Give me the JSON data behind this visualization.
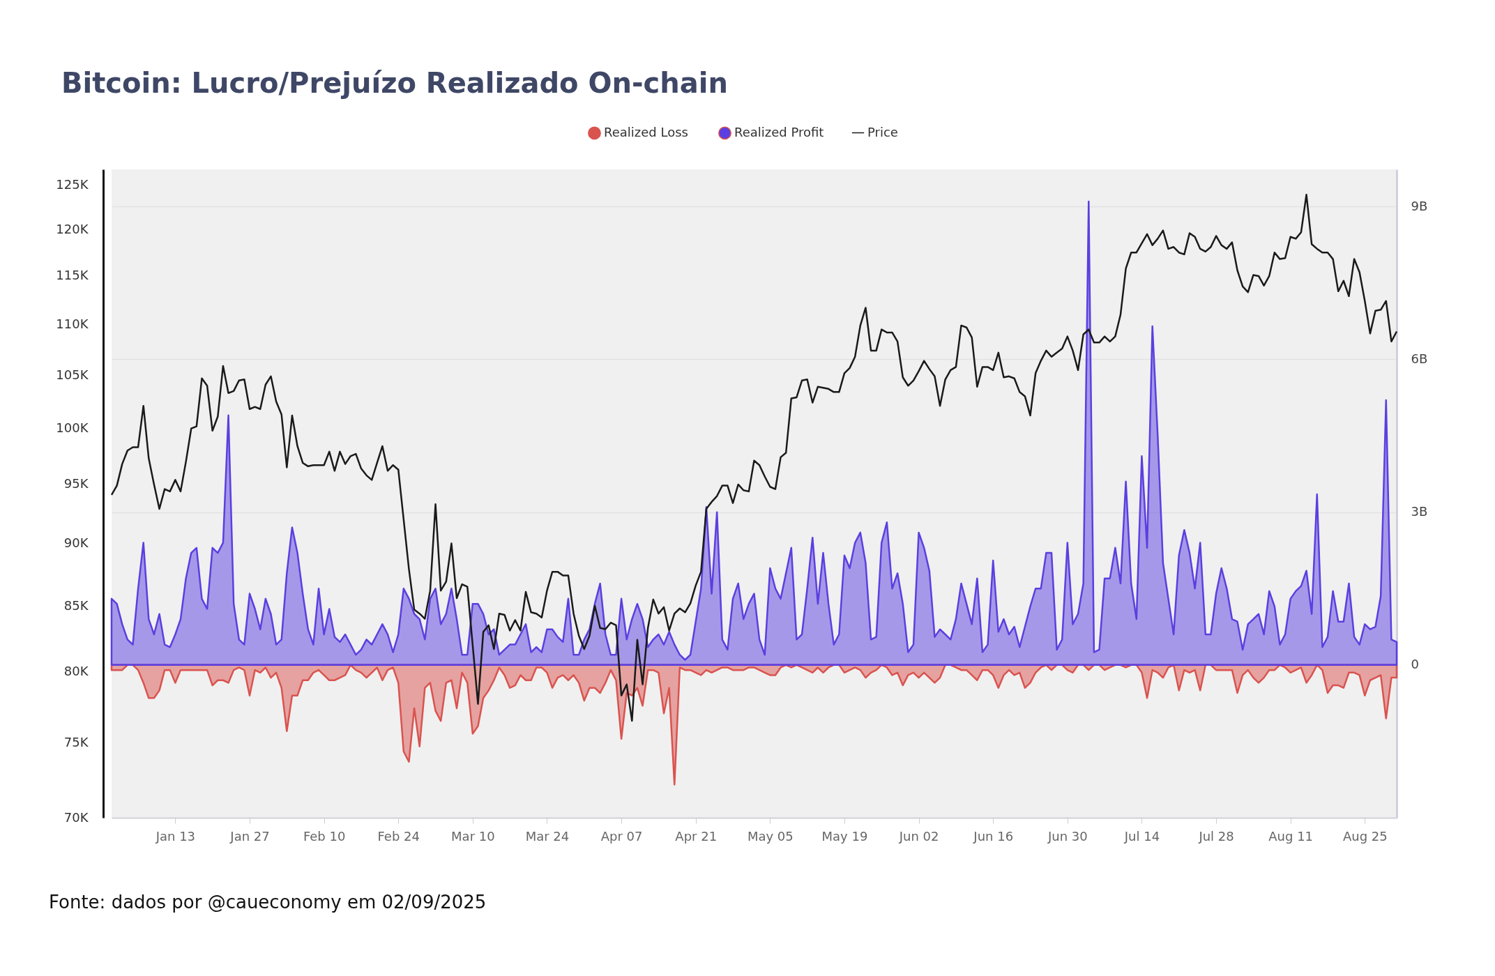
{
  "chart_data": {
    "type": "line",
    "title": "Bitcoin: Lucro/Prejuízo Realizado On-chain",
    "annotations": [
      "Fonte: dados por @caueconomy em 02/09/2025"
    ],
    "legend": "top",
    "grid": "y2",
    "log": "y",
    "xlim": [
      "2025-01-01",
      "2025-08-31"
    ],
    "xticks": [
      {
        "value": "2025-01-13",
        "label": "Jan 13"
      },
      {
        "value": "2025-01-27",
        "label": "Jan 27"
      },
      {
        "value": "2025-02-10",
        "label": "Feb 10"
      },
      {
        "value": "2025-02-24",
        "label": "Feb 24"
      },
      {
        "value": "2025-03-10",
        "label": "Mar 10"
      },
      {
        "value": "2025-03-24",
        "label": "Mar 24"
      },
      {
        "value": "2025-04-07",
        "label": "Apr 07"
      },
      {
        "value": "2025-04-21",
        "label": "Apr 21"
      },
      {
        "value": "2025-05-05",
        "label": "May 05"
      },
      {
        "value": "2025-05-19",
        "label": "May 19"
      },
      {
        "value": "2025-06-02",
        "label": "Jun 02"
      },
      {
        "value": "2025-06-16",
        "label": "Jun 16"
      },
      {
        "value": "2025-06-30",
        "label": "Jun 30"
      },
      {
        "value": "2025-07-14",
        "label": "Jul 14"
      },
      {
        "value": "2025-07-28",
        "label": "Jul 28"
      },
      {
        "value": "2025-08-11",
        "label": "Aug 11"
      },
      {
        "value": "2025-08-25",
        "label": "Aug 25"
      }
    ],
    "ylim": [
      70,
      126.8
    ],
    "yticks": [
      {
        "value": 70,
        "label": "70K"
      },
      {
        "value": 75,
        "label": "75K"
      },
      {
        "value": 80,
        "label": "80K"
      },
      {
        "value": 85,
        "label": "85K"
      },
      {
        "value": 90,
        "label": "90K"
      },
      {
        "value": 95,
        "label": "95K"
      },
      {
        "value": 100,
        "label": "100K"
      },
      {
        "value": 105,
        "label": "105K"
      },
      {
        "value": 110,
        "label": "110K"
      },
      {
        "value": 115,
        "label": "115K"
      },
      {
        "value": 120,
        "label": "120K"
      },
      {
        "value": 125,
        "label": "125K"
      }
    ],
    "y2lim": [
      -3,
      9.73
    ],
    "y2ticks": [
      0,
      {
        "value": 3,
        "label": "3B"
      },
      {
        "value": 6,
        "label": "6B"
      },
      {
        "value": 9,
        "label": "9B"
      }
    ],
    "x": [
      "2025-01-01",
      "2025-01-02",
      "2025-01-03",
      "2025-01-04",
      "2025-01-05",
      "2025-01-06",
      "2025-01-07",
      "2025-01-08",
      "2025-01-09",
      "2025-01-10",
      "2025-01-11",
      "2025-01-12",
      "2025-01-13",
      "2025-01-14",
      "2025-01-15",
      "2025-01-16",
      "2025-01-17",
      "2025-01-18",
      "2025-01-19",
      "2025-01-20",
      "2025-01-21",
      "2025-01-22",
      "2025-01-23",
      "2025-01-24",
      "2025-01-25",
      "2025-01-26",
      "2025-01-27",
      "2025-01-28",
      "2025-01-29",
      "2025-01-30",
      "2025-01-31",
      "2025-02-01",
      "2025-02-02",
      "2025-02-03",
      "2025-02-04",
      "2025-02-05",
      "2025-02-06",
      "2025-02-07",
      "2025-02-08",
      "2025-02-09",
      "2025-02-10",
      "2025-02-11",
      "2025-02-12",
      "2025-02-13",
      "2025-02-14",
      "2025-02-15",
      "2025-02-16",
      "2025-02-17",
      "2025-02-18",
      "2025-02-19",
      "2025-02-20",
      "2025-02-21",
      "2025-02-22",
      "2025-02-23",
      "2025-02-24",
      "2025-02-25",
      "2025-02-26",
      "2025-02-27",
      "2025-02-28",
      "2025-03-01",
      "2025-03-02",
      "2025-03-03",
      "2025-03-04",
      "2025-03-05",
      "2025-03-06",
      "2025-03-07",
      "2025-03-08",
      "2025-03-09",
      "2025-03-10",
      "2025-03-11",
      "2025-03-12",
      "2025-03-13",
      "2025-03-14",
      "2025-03-15",
      "2025-03-16",
      "2025-03-17",
      "2025-03-18",
      "2025-03-19",
      "2025-03-20",
      "2025-03-21",
      "2025-03-22",
      "2025-03-23",
      "2025-03-24",
      "2025-03-25",
      "2025-03-26",
      "2025-03-27",
      "2025-03-28",
      "2025-03-29",
      "2025-03-30",
      "2025-03-31",
      "2025-04-01",
      "2025-04-02",
      "2025-04-03",
      "2025-04-04",
      "2025-04-05",
      "2025-04-06",
      "2025-04-07",
      "2025-04-08",
      "2025-04-09",
      "2025-04-10",
      "2025-04-11",
      "2025-04-12",
      "2025-04-13",
      "2025-04-14",
      "2025-04-15",
      "2025-04-16",
      "2025-04-17",
      "2025-04-18",
      "2025-04-19",
      "2025-04-20",
      "2025-04-21",
      "2025-04-22",
      "2025-04-23",
      "2025-04-24",
      "2025-04-25",
      "2025-04-26",
      "2025-04-27",
      "2025-04-28",
      "2025-04-29",
      "2025-04-30",
      "2025-05-01",
      "2025-05-02",
      "2025-05-03",
      "2025-05-04",
      "2025-05-05",
      "2025-05-06",
      "2025-05-07",
      "2025-05-08",
      "2025-05-09",
      "2025-05-10",
      "2025-05-11",
      "2025-05-12",
      "2025-05-13",
      "2025-05-14",
      "2025-05-15",
      "2025-05-16",
      "2025-05-17",
      "2025-05-18",
      "2025-05-19",
      "2025-05-20",
      "2025-05-21",
      "2025-05-22",
      "2025-05-23",
      "2025-05-24",
      "2025-05-25",
      "2025-05-26",
      "2025-05-27",
      "2025-05-28",
      "2025-05-29",
      "2025-05-30",
      "2025-05-31",
      "2025-06-01",
      "2025-06-02",
      "2025-06-03",
      "2025-06-04",
      "2025-06-05",
      "2025-06-06",
      "2025-06-07",
      "2025-06-08",
      "2025-06-09",
      "2025-06-10",
      "2025-06-11",
      "2025-06-12",
      "2025-06-13",
      "2025-06-14",
      "2025-06-15",
      "2025-06-16",
      "2025-06-17",
      "2025-06-18",
      "2025-06-19",
      "2025-06-20",
      "2025-06-21",
      "2025-06-22",
      "2025-06-23",
      "2025-06-24",
      "2025-06-25",
      "2025-06-26",
      "2025-06-27",
      "2025-06-28",
      "2025-06-29",
      "2025-06-30",
      "2025-07-01",
      "2025-07-02",
      "2025-07-03",
      "2025-07-04",
      "2025-07-05",
      "2025-07-06",
      "2025-07-07",
      "2025-07-08",
      "2025-07-09",
      "2025-07-10",
      "2025-07-11",
      "2025-07-12",
      "2025-07-13",
      "2025-07-14",
      "2025-07-15",
      "2025-07-16",
      "2025-07-17",
      "2025-07-18",
      "2025-07-19",
      "2025-07-20",
      "2025-07-21",
      "2025-07-22",
      "2025-07-23",
      "2025-07-24",
      "2025-07-25",
      "2025-07-26",
      "2025-07-27",
      "2025-07-28",
      "2025-07-29",
      "2025-07-30",
      "2025-07-31",
      "2025-08-01",
      "2025-08-02",
      "2025-08-03",
      "2025-08-04",
      "2025-08-05",
      "2025-08-06",
      "2025-08-07",
      "2025-08-08",
      "2025-08-09",
      "2025-08-10",
      "2025-08-11",
      "2025-08-12",
      "2025-08-13",
      "2025-08-14",
      "2025-08-15",
      "2025-08-16",
      "2025-08-17",
      "2025-08-18",
      "2025-08-19",
      "2025-08-20",
      "2025-08-21",
      "2025-08-22",
      "2025-08-23",
      "2025-08-24",
      "2025-08-25",
      "2025-08-26",
      "2025-08-27",
      "2025-08-28",
      "2025-08-29",
      "2025-08-30",
      "2025-08-31"
    ],
    "series": [
      {
        "name": "Realized Loss",
        "type": "area",
        "axis": "y2",
        "color": "#d9534f",
        "values": [
          -0.1,
          -0.1,
          -0.1,
          0,
          0,
          -0.1,
          -0.35,
          -0.65,
          -0.65,
          -0.5,
          -0.1,
          -0.1,
          -0.35,
          -0.1,
          -0.1,
          -0.1,
          -0.1,
          -0.1,
          -0.1,
          -0.4,
          -0.3,
          -0.3,
          -0.35,
          -0.1,
          -0.05,
          -0.1,
          -0.6,
          -0.1,
          -0.15,
          -0.05,
          -0.25,
          -0.15,
          -0.45,
          -1.3,
          -0.6,
          -0.6,
          -0.3,
          -0.3,
          -0.15,
          -0.1,
          -0.2,
          -0.3,
          -0.3,
          -0.25,
          -0.2,
          0,
          -0.1,
          -0.15,
          -0.25,
          -0.15,
          -0.05,
          -0.3,
          -0.1,
          -0.05,
          -0.35,
          -1.7,
          -1.9,
          -0.85,
          -1.6,
          -0.45,
          -0.35,
          -0.9,
          -1.1,
          -0.35,
          -0.3,
          -0.85,
          -0.15,
          -0.35,
          -1.35,
          -1.2,
          -0.65,
          -0.5,
          -0.3,
          -0.05,
          -0.2,
          -0.45,
          -0.4,
          -0.2,
          -0.3,
          -0.3,
          -0.05,
          -0.05,
          -0.15,
          -0.45,
          -0.25,
          -0.2,
          -0.3,
          -0.2,
          -0.35,
          -0.7,
          -0.45,
          -0.45,
          -0.55,
          -0.35,
          -0.1,
          -0.3,
          -1.45,
          -0.55,
          -0.6,
          -0.45,
          -0.8,
          -0.1,
          -0.1,
          -0.15,
          -0.95,
          -0.45,
          -2.35,
          -0.05,
          -0.1,
          -0.1,
          -0.15,
          -0.2,
          -0.1,
          -0.15,
          -0.1,
          -0.05,
          -0.05,
          -0.1,
          -0.1,
          -0.1,
          -0.05,
          -0.05,
          -0.1,
          -0.15,
          -0.2,
          -0.2,
          -0.05,
          0,
          -0.05,
          0,
          -0.05,
          -0.1,
          -0.15,
          -0.05,
          -0.15,
          -0.05,
          0,
          0,
          -0.15,
          -0.1,
          -0.05,
          -0.1,
          -0.25,
          -0.15,
          -0.1,
          0,
          -0.05,
          -0.2,
          -0.15,
          -0.4,
          -0.2,
          -0.15,
          -0.25,
          -0.15,
          -0.25,
          -0.35,
          -0.25,
          0,
          0,
          -0.05,
          -0.1,
          -0.1,
          -0.2,
          -0.3,
          -0.1,
          -0.1,
          -0.2,
          -0.45,
          -0.2,
          -0.1,
          -0.2,
          -0.15,
          -0.45,
          -0.35,
          -0.15,
          -0.05,
          0,
          -0.1,
          0,
          0,
          -0.1,
          -0.15,
          0,
          0,
          -0.1,
          0,
          0,
          -0.1,
          -0.05,
          0,
          0,
          -0.05,
          0,
          0,
          -0.15,
          -0.65,
          -0.1,
          -0.15,
          -0.25,
          -0.05,
          0,
          -0.5,
          -0.1,
          -0.15,
          -0.1,
          -0.5,
          0,
          0,
          -0.1,
          -0.1,
          -0.1,
          -0.1,
          -0.55,
          -0.2,
          -0.1,
          -0.25,
          -0.35,
          -0.25,
          -0.1,
          -0.1,
          0,
          -0.05,
          -0.15,
          -0.1,
          -0.05,
          -0.35,
          -0.2,
          0,
          -0.1,
          -0.55,
          -0.4,
          -0.4,
          -0.45,
          -0.15,
          -0.15,
          -0.2,
          -0.6,
          -0.3,
          -0.25,
          -0.2,
          -1.05,
          -0.25,
          -0.25
        ]
      },
      {
        "name": "Realized Profit",
        "type": "area",
        "axis": "y2",
        "color": "#5b3fe0",
        "values": [
          1.3,
          1.2,
          0.8,
          0.5,
          0.4,
          1.5,
          2.4,
          0.9,
          0.6,
          1.0,
          0.4,
          0.35,
          0.6,
          0.9,
          1.7,
          2.2,
          2.3,
          1.3,
          1.1,
          2.3,
          2.2,
          2.4,
          4.9,
          1.2,
          0.5,
          0.4,
          1.4,
          1.1,
          0.7,
          1.3,
          1.0,
          0.4,
          0.5,
          1.8,
          2.7,
          2.2,
          1.4,
          0.7,
          0.4,
          1.5,
          0.6,
          1.1,
          0.55,
          0.45,
          0.6,
          0.4,
          0.2,
          0.3,
          0.5,
          0.4,
          0.6,
          0.8,
          0.6,
          0.25,
          0.6,
          1.5,
          1.3,
          1.0,
          0.9,
          0.5,
          1.3,
          1.5,
          0.8,
          1.0,
          1.5,
          0.9,
          0.2,
          0.2,
          1.2,
          1.2,
          1.0,
          0.6,
          0.7,
          0.2,
          0.3,
          0.4,
          0.4,
          0.6,
          0.8,
          0.25,
          0.35,
          0.25,
          0.7,
          0.7,
          0.55,
          0.45,
          1.3,
          0.2,
          0.2,
          0.5,
          0.7,
          1.2,
          1.6,
          0.6,
          0.2,
          0.2,
          1.3,
          0.5,
          0.9,
          1.2,
          0.9,
          0.35,
          0.5,
          0.6,
          0.4,
          0.65,
          0.4,
          0.2,
          0.1,
          0.2,
          0.85,
          1.5,
          3.1,
          1.4,
          3.0,
          0.5,
          0.3,
          1.3,
          1.6,
          0.9,
          1.2,
          1.4,
          0.5,
          0.2,
          1.9,
          1.5,
          1.3,
          1.8,
          2.3,
          0.5,
          0.6,
          1.5,
          2.5,
          1.2,
          2.2,
          1.2,
          0.4,
          0.6,
          2.15,
          1.9,
          2.4,
          2.6,
          2.0,
          0.5,
          0.55,
          2.4,
          2.8,
          1.5,
          1.8,
          1.2,
          0.25,
          0.4,
          2.6,
          2.3,
          1.85,
          0.55,
          0.7,
          0.6,
          0.5,
          0.9,
          1.6,
          1.2,
          0.8,
          1.7,
          0.25,
          0.4,
          2.05,
          0.65,
          0.9,
          0.6,
          0.75,
          0.35,
          0.75,
          1.15,
          1.5,
          1.5,
          2.2,
          2.2,
          0.3,
          0.5,
          2.4,
          0.8,
          1.0,
          1.6,
          9.1,
          0.25,
          0.3,
          1.7,
          1.7,
          2.3,
          1.6,
          3.6,
          1.6,
          0.9,
          4.1,
          2.3,
          6.65,
          4.5,
          2.0,
          1.3,
          0.6,
          2.15,
          2.65,
          2.2,
          1.5,
          2.4,
          0.6,
          0.6,
          1.4,
          1.9,
          1.5,
          0.9,
          0.85,
          0.3,
          0.8,
          0.9,
          1.0,
          0.6,
          1.45,
          1.15,
          0.4,
          0.6,
          1.3,
          1.45,
          1.55,
          1.85,
          1.0,
          3.35,
          0.35,
          0.55,
          1.45,
          0.85,
          0.85,
          1.6,
          0.55,
          0.4,
          0.8,
          0.7,
          0.75,
          1.35,
          5.2,
          0.5,
          0.45
        ]
      },
      {
        "name": "Price",
        "axis": "y",
        "color": "#1a1a1a",
        "values": [
          94.1,
          94.9,
          96.8,
          98.0,
          98.3,
          98.3,
          102.1,
          97.3,
          95.0,
          92.9,
          94.6,
          94.4,
          95.4,
          94.4,
          97.0,
          100.0,
          100.2,
          104.7,
          104.0,
          99.8,
          101.1,
          105.9,
          103.3,
          103.5,
          104.5,
          104.6,
          101.8,
          102.0,
          101.8,
          104.1,
          104.9,
          102.5,
          101.3,
          96.5,
          101.2,
          98.4,
          96.9,
          96.6,
          96.7,
          96.7,
          96.7,
          97.9,
          96.2,
          97.9,
          96.8,
          97.5,
          97.7,
          96.4,
          95.8,
          95.4,
          96.9,
          98.4,
          96.2,
          96.7,
          96.3,
          92.0,
          87.9,
          84.7,
          84.4,
          84.0,
          86.2,
          93.3,
          86.2,
          86.9,
          90.0,
          85.6,
          86.7,
          86.5,
          82.0,
          77.7,
          83.0,
          83.5,
          81.7,
          84.4,
          84.3,
          83.1,
          83.9,
          83.1,
          86.1,
          84.5,
          84.4,
          84.1,
          86.2,
          87.7,
          87.7,
          87.4,
          87.4,
          84.4,
          82.7,
          81.7,
          82.7,
          85.0,
          83.3,
          83.2,
          83.7,
          83.5,
          78.3,
          79.1,
          76.5,
          82.4,
          79.1,
          83.3,
          85.5,
          84.4,
          84.9,
          83.1,
          84.4,
          84.8,
          84.5,
          85.2,
          86.6,
          87.7,
          92.9,
          93.5,
          94.0,
          94.9,
          94.9,
          93.4,
          95.0,
          94.5,
          94.4,
          97.1,
          96.7,
          95.7,
          94.8,
          94.6,
          97.4,
          97.8,
          102.8,
          102.9,
          104.5,
          104.6,
          102.4,
          103.9,
          103.8,
          103.7,
          103.4,
          103.4,
          105.2,
          105.7,
          106.8,
          109.9,
          111.7,
          107.4,
          107.4,
          109.5,
          109.2,
          109.2,
          108.3,
          104.8,
          104.0,
          104.5,
          105.4,
          106.4,
          105.6,
          104.9,
          102.1,
          104.6,
          105.5,
          105.8,
          109.9,
          109.7,
          108.7,
          103.9,
          105.8,
          105.8,
          105.5,
          107.2,
          104.8,
          104.9,
          104.7,
          103.4,
          103.0,
          101.2,
          105.2,
          106.4,
          107.4,
          106.8,
          107.2,
          107.6,
          108.8,
          107.4,
          105.5,
          109.0,
          109.5,
          108.2,
          108.2,
          108.8,
          108.3,
          108.8,
          111.0,
          115.8,
          117.5,
          117.5,
          118.5,
          119.5,
          118.3,
          119.0,
          119.9,
          117.9,
          118.1,
          117.5,
          117.3,
          119.6,
          119.2,
          117.9,
          117.6,
          118.1,
          119.3,
          118.3,
          117.9,
          118.6,
          115.6,
          113.9,
          113.3,
          115.1,
          115.0,
          114.0,
          115.0,
          117.5,
          116.8,
          116.9,
          119.2,
          119.0,
          119.7,
          123.9,
          118.4,
          117.9,
          117.5,
          117.5,
          116.8,
          113.4,
          114.5,
          112.9,
          116.8,
          115.4,
          112.4,
          109.1,
          111.4,
          111.5,
          112.4,
          108.3,
          109.3
        ]
      }
    ]
  }
}
